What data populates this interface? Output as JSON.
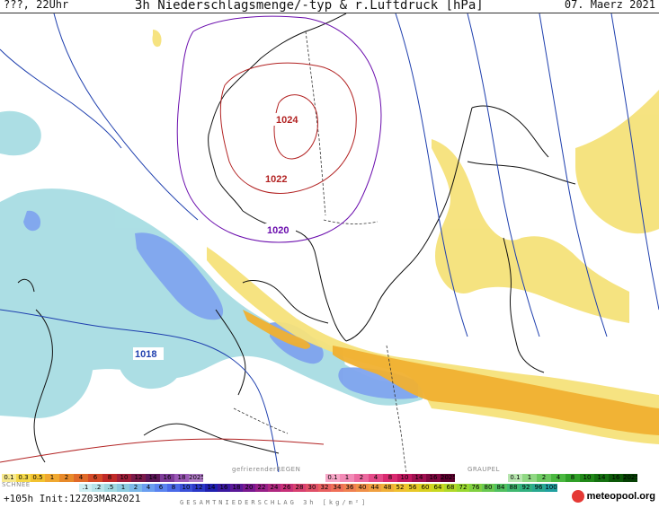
{
  "header": {
    "left": "???, 22Uhr",
    "title": "3h Niederschlagsmenge/-typ & r.Luftdruck [hPa]",
    "date": "07. Maerz 2021"
  },
  "map": {
    "isobars": [
      "1024",
      "1022",
      "1020",
      "1018"
    ],
    "isobar_colors": {
      "1024": "#b22222",
      "1022": "#b22222",
      "1020": "#6a0dad",
      "1018": "#1e3fae"
    }
  },
  "legend": {
    "rain": {
      "values": [
        "0.1",
        "0.3",
        "0.5",
        "1",
        "2",
        "4",
        "6",
        "8",
        "10",
        "12",
        "14",
        "16",
        "18",
        "2025+"
      ],
      "colors": [
        "#f7e98e",
        "#f5d94a",
        "#f2c230",
        "#f0a830",
        "#e88a2a",
        "#e06a2a",
        "#d44a28",
        "#c02a28",
        "#a01e3a",
        "#7a1a4a",
        "#5c1658",
        "#7d3c98",
        "#9b59b6",
        "#b07cc6"
      ]
    },
    "frz_rain": {
      "label": "gefrierenderREGEN",
      "values": [
        "0.1",
        "1",
        "2",
        "4",
        "8",
        "10",
        "14",
        "16",
        "2025+"
      ],
      "colors": [
        "#f7a8c8",
        "#f28ab6",
        "#ec6aa0",
        "#e44a88",
        "#d92a70",
        "#c21860",
        "#a01050",
        "#800840",
        "#600030"
      ]
    },
    "graupel": {
      "label": "GRAUPEL",
      "values": [
        "0.1",
        "1",
        "2",
        "4",
        "8",
        "10",
        "14",
        "16",
        "2025+"
      ],
      "colors": [
        "#b8e6b0",
        "#90d884",
        "#6cc860",
        "#4ab840",
        "#30a028",
        "#208818",
        "#147010",
        "#0c5808",
        "#064004"
      ]
    },
    "snow": {
      "label": "SCHNEE",
      "values": [
        ".1",
        ".2",
        ".5",
        "1",
        "2",
        "4",
        "6",
        "8",
        "10",
        "12",
        "14",
        "16",
        "18",
        "20",
        "22",
        "24",
        "26",
        "28",
        "30",
        "32",
        "34",
        "36",
        "40",
        "44",
        "48",
        "52",
        "56",
        "60",
        "64",
        "68",
        "72",
        "76",
        "80",
        "84",
        "88",
        "92",
        "96",
        "100"
      ],
      "colors": [
        "#cfeff3",
        "#b8e4ea",
        "#a0d8e0",
        "#8ccbe0",
        "#7cb8e8",
        "#6a9ef0",
        "#5a84f0",
        "#4a6ae8",
        "#3a50d8",
        "#2a38c8",
        "#2020b0",
        "#3a18a0",
        "#5a1898",
        "#7a1890",
        "#982088",
        "#b02880",
        "#c83078",
        "#d84070",
        "#e05068",
        "#e86060",
        "#f07058",
        "#f08050",
        "#f09048",
        "#f0a040",
        "#f0b038",
        "#f0c030",
        "#e8c828",
        "#d8d020",
        "#c8d820",
        "#b0d828",
        "#98d830",
        "#80d040",
        "#68c850",
        "#50c060",
        "#40b870",
        "#30b080",
        "#28a890",
        "#20a0a0"
      ]
    },
    "footer": "+105h Init:12Z03MAR2021",
    "gesamt": "GESAMTNIEDERSCHLAG 3h [kg/m²]",
    "logo": "meteopool.org"
  }
}
